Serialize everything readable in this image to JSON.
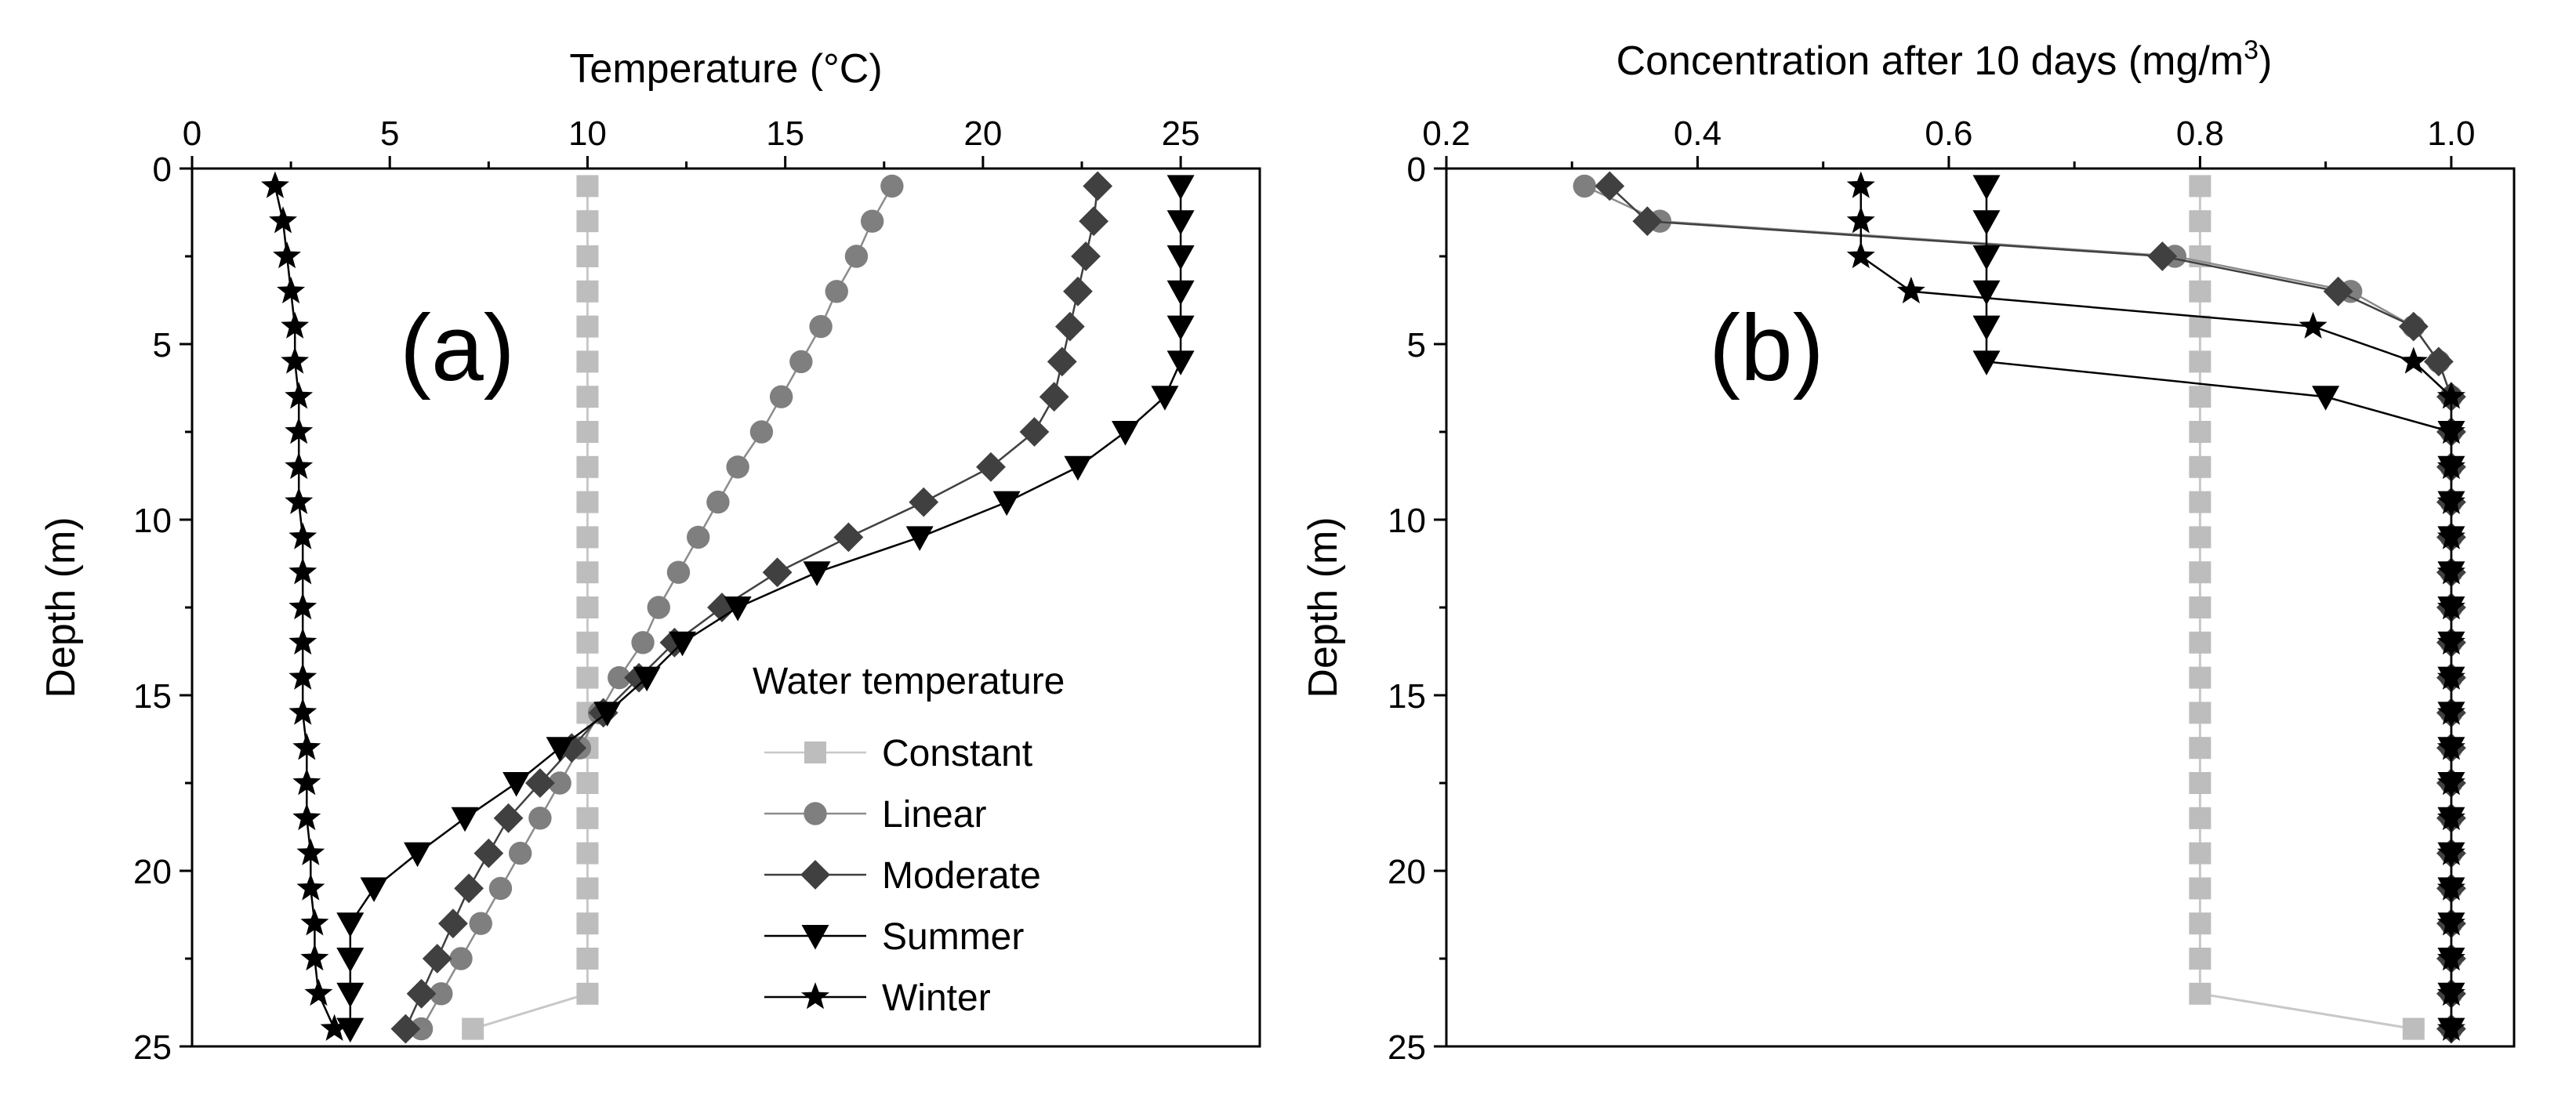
{
  "legend": {
    "title": "Water temperature",
    "entries": [
      "Constant",
      "Linear",
      "Moderate",
      "Summer",
      "Winter"
    ],
    "placement": "lower-right of panel (a)"
  },
  "styles": {
    "Constant": {
      "color": "#bdbdbd",
      "marker": "square",
      "line_color": "#c8c8c8"
    },
    "Linear": {
      "color": "#7f7f7f",
      "marker": "circle",
      "line_color": "#8c8c8c"
    },
    "Moderate": {
      "color": "#404040",
      "marker": "diamond",
      "line_color": "#404040"
    },
    "Summer": {
      "color": "#000000",
      "marker": "triangle-down",
      "line_color": "#000000"
    },
    "Winter": {
      "color": "#000000",
      "marker": "star",
      "line_color": "#000000"
    }
  },
  "chart_data": [
    {
      "id": "a",
      "type": "line",
      "panel_label": "(a)",
      "xlabel": "Temperature (°C)",
      "ylabel": "Depth (m)",
      "xlim": [
        0,
        27
      ],
      "ylim": [
        0,
        25
      ],
      "x_ticks": [
        0,
        5,
        10,
        15,
        20,
        25
      ],
      "y_ticks": [
        0,
        5,
        10,
        15,
        20,
        25
      ],
      "y_inverted": true,
      "x_axis_position": "top",
      "series": [
        {
          "name": "Constant",
          "depth": [
            0.5,
            1.5,
            2.5,
            3.5,
            4.5,
            5.5,
            6.5,
            7.5,
            8.5,
            9.5,
            10.5,
            11.5,
            12.5,
            13.5,
            14.5,
            15.5,
            16.5,
            17.5,
            18.5,
            19.5,
            20.5,
            21.5,
            22.5,
            23.5,
            24.5
          ],
          "x": [
            10,
            10,
            10,
            10,
            10,
            10,
            10,
            10,
            10,
            10,
            10,
            10,
            10,
            10,
            10,
            10,
            10,
            10,
            10,
            10,
            10,
            10,
            10,
            10,
            7.1
          ]
        },
        {
          "name": "Linear",
          "depth": [
            0.5,
            1.5,
            2.5,
            3.5,
            4.5,
            5.5,
            6.5,
            7.5,
            8.5,
            9.5,
            10.5,
            11.5,
            12.5,
            13.5,
            14.5,
            15.5,
            16.5,
            17.5,
            18.5,
            19.5,
            20.5,
            21.5,
            22.5,
            23.5,
            24.5
          ],
          "x": [
            17.7,
            17.2,
            16.8,
            16.3,
            15.9,
            15.4,
            14.9,
            14.4,
            13.8,
            13.3,
            12.8,
            12.3,
            11.8,
            11.4,
            10.8,
            10.3,
            9.8,
            9.3,
            8.8,
            8.3,
            7.8,
            7.3,
            6.8,
            6.3,
            5.8
          ]
        },
        {
          "name": "Moderate",
          "depth": [
            0.5,
            1.5,
            2.5,
            3.5,
            4.5,
            5.5,
            6.5,
            7.5,
            8.5,
            9.5,
            10.5,
            11.5,
            12.5,
            13.5,
            14.5,
            15.5,
            16.5,
            17.5,
            18.5,
            19.5,
            20.5,
            21.5,
            22.5,
            23.5,
            24.5
          ],
          "x": [
            22.9,
            22.8,
            22.6,
            22.4,
            22.2,
            22.0,
            21.8,
            21.3,
            20.2,
            18.5,
            16.6,
            14.8,
            13.4,
            12.2,
            11.3,
            10.4,
            9.6,
            8.8,
            8.0,
            7.5,
            7.0,
            6.6,
            6.2,
            5.8,
            5.4
          ]
        },
        {
          "name": "Summer",
          "depth": [
            0.5,
            1.5,
            2.5,
            3.5,
            4.5,
            5.5,
            6.5,
            7.5,
            8.5,
            9.5,
            10.5,
            11.5,
            12.5,
            13.5,
            14.5,
            15.5,
            16.5,
            17.5,
            18.5,
            19.5,
            20.5,
            21.5,
            22.5,
            23.5,
            24.5
          ],
          "x": [
            25.0,
            25.0,
            25.0,
            25.0,
            25.0,
            25.0,
            24.6,
            23.6,
            22.4,
            20.6,
            18.4,
            15.8,
            13.8,
            12.4,
            11.5,
            10.5,
            9.3,
            8.2,
            6.9,
            5.7,
            4.6,
            4.0,
            4.0,
            4.0,
            4.0
          ]
        },
        {
          "name": "Winter",
          "depth": [
            0.5,
            1.5,
            2.5,
            3.5,
            4.5,
            5.5,
            6.5,
            7.5,
            8.5,
            9.5,
            10.5,
            11.5,
            12.5,
            13.5,
            14.5,
            15.5,
            16.5,
            17.5,
            18.5,
            19.5,
            20.5,
            21.5,
            22.5,
            23.5,
            24.5
          ],
          "x": [
            2.1,
            2.3,
            2.4,
            2.5,
            2.6,
            2.6,
            2.7,
            2.7,
            2.7,
            2.7,
            2.8,
            2.8,
            2.8,
            2.8,
            2.8,
            2.8,
            2.9,
            2.9,
            2.9,
            3.0,
            3.0,
            3.1,
            3.1,
            3.2,
            3.6
          ]
        }
      ]
    },
    {
      "id": "b",
      "type": "line",
      "panel_label": "(b)",
      "xlabel": "Concentration after 10 days (mg/m",
      "xlabel_superscript": "3",
      "xlabel_suffix": ")",
      "ylabel": "Depth (m)",
      "xlim": [
        0.2,
        1.05
      ],
      "ylim": [
        0,
        25
      ],
      "x_ticks": [
        "0.2",
        "0.4",
        "0.6",
        "0.8",
        "1.0"
      ],
      "y_ticks": [
        0,
        5,
        10,
        15,
        20,
        25
      ],
      "y_inverted": true,
      "x_axis_position": "top",
      "series": [
        {
          "name": "Constant",
          "depth": [
            0.5,
            1.5,
            2.5,
            3.5,
            4.5,
            5.5,
            6.5,
            7.5,
            8.5,
            9.5,
            10.5,
            11.5,
            12.5,
            13.5,
            14.5,
            15.5,
            16.5,
            17.5,
            18.5,
            19.5,
            20.5,
            21.5,
            22.5,
            23.5,
            24.5
          ],
          "x": [
            0.8,
            0.8,
            0.8,
            0.8,
            0.8,
            0.8,
            0.8,
            0.8,
            0.8,
            0.8,
            0.8,
            0.8,
            0.8,
            0.8,
            0.8,
            0.8,
            0.8,
            0.8,
            0.8,
            0.8,
            0.8,
            0.8,
            0.8,
            0.8,
            0.97
          ]
        },
        {
          "name": "Linear",
          "depth": [
            0.5,
            1.5,
            2.5,
            3.5,
            4.5,
            5.5,
            6.5,
            7.5,
            8.5,
            9.5,
            10.5,
            11.5,
            12.5,
            13.5,
            14.5,
            15.5,
            16.5,
            17.5,
            18.5,
            19.5,
            20.5,
            21.5,
            22.5,
            23.5,
            24.5
          ],
          "x": [
            0.31,
            0.37,
            0.78,
            0.92,
            0.97,
            0.99,
            1.0,
            1.0,
            1.0,
            1.0,
            1.0,
            1.0,
            1.0,
            1.0,
            1.0,
            1.0,
            1.0,
            1.0,
            1.0,
            1.0,
            1.0,
            1.0,
            1.0,
            1.0,
            1.0
          ]
        },
        {
          "name": "Moderate",
          "depth": [
            0.5,
            1.5,
            2.5,
            3.5,
            4.5,
            5.5,
            6.5,
            7.5,
            8.5,
            9.5,
            10.5,
            11.5,
            12.5,
            13.5,
            14.5,
            15.5,
            16.5,
            17.5,
            18.5,
            19.5,
            20.5,
            21.5,
            22.5,
            23.5,
            24.5
          ],
          "x": [
            0.33,
            0.36,
            0.77,
            0.91,
            0.97,
            0.99,
            1.0,
            1.0,
            1.0,
            1.0,
            1.0,
            1.0,
            1.0,
            1.0,
            1.0,
            1.0,
            1.0,
            1.0,
            1.0,
            1.0,
            1.0,
            1.0,
            1.0,
            1.0,
            1.0
          ]
        },
        {
          "name": "Summer",
          "depth": [
            0.5,
            1.5,
            2.5,
            3.5,
            4.5,
            5.5,
            6.5,
            7.5,
            8.5,
            9.5,
            10.5,
            11.5,
            12.5,
            13.5,
            14.5,
            15.5,
            16.5,
            17.5,
            18.5,
            19.5,
            20.5,
            21.5,
            22.5,
            23.5,
            24.5
          ],
          "x": [
            0.63,
            0.63,
            0.63,
            0.63,
            0.63,
            0.63,
            0.9,
            1.0,
            1.0,
            1.0,
            1.0,
            1.0,
            1.0,
            1.0,
            1.0,
            1.0,
            1.0,
            1.0,
            1.0,
            1.0,
            1.0,
            1.0,
            1.0,
            1.0,
            1.0
          ]
        },
        {
          "name": "Winter",
          "depth": [
            0.5,
            1.5,
            2.5,
            3.5,
            4.5,
            5.5,
            6.5,
            7.5,
            8.5,
            9.5,
            10.5,
            11.5,
            12.5,
            13.5,
            14.5,
            15.5,
            16.5,
            17.5,
            18.5,
            19.5,
            20.5,
            21.5,
            22.5,
            23.5,
            24.5
          ],
          "x": [
            0.53,
            0.53,
            0.53,
            0.57,
            0.89,
            0.97,
            1.0,
            1.0,
            1.0,
            1.0,
            1.0,
            1.0,
            1.0,
            1.0,
            1.0,
            1.0,
            1.0,
            1.0,
            1.0,
            1.0,
            1.0,
            1.0,
            1.0,
            1.0,
            1.0
          ]
        }
      ]
    }
  ]
}
